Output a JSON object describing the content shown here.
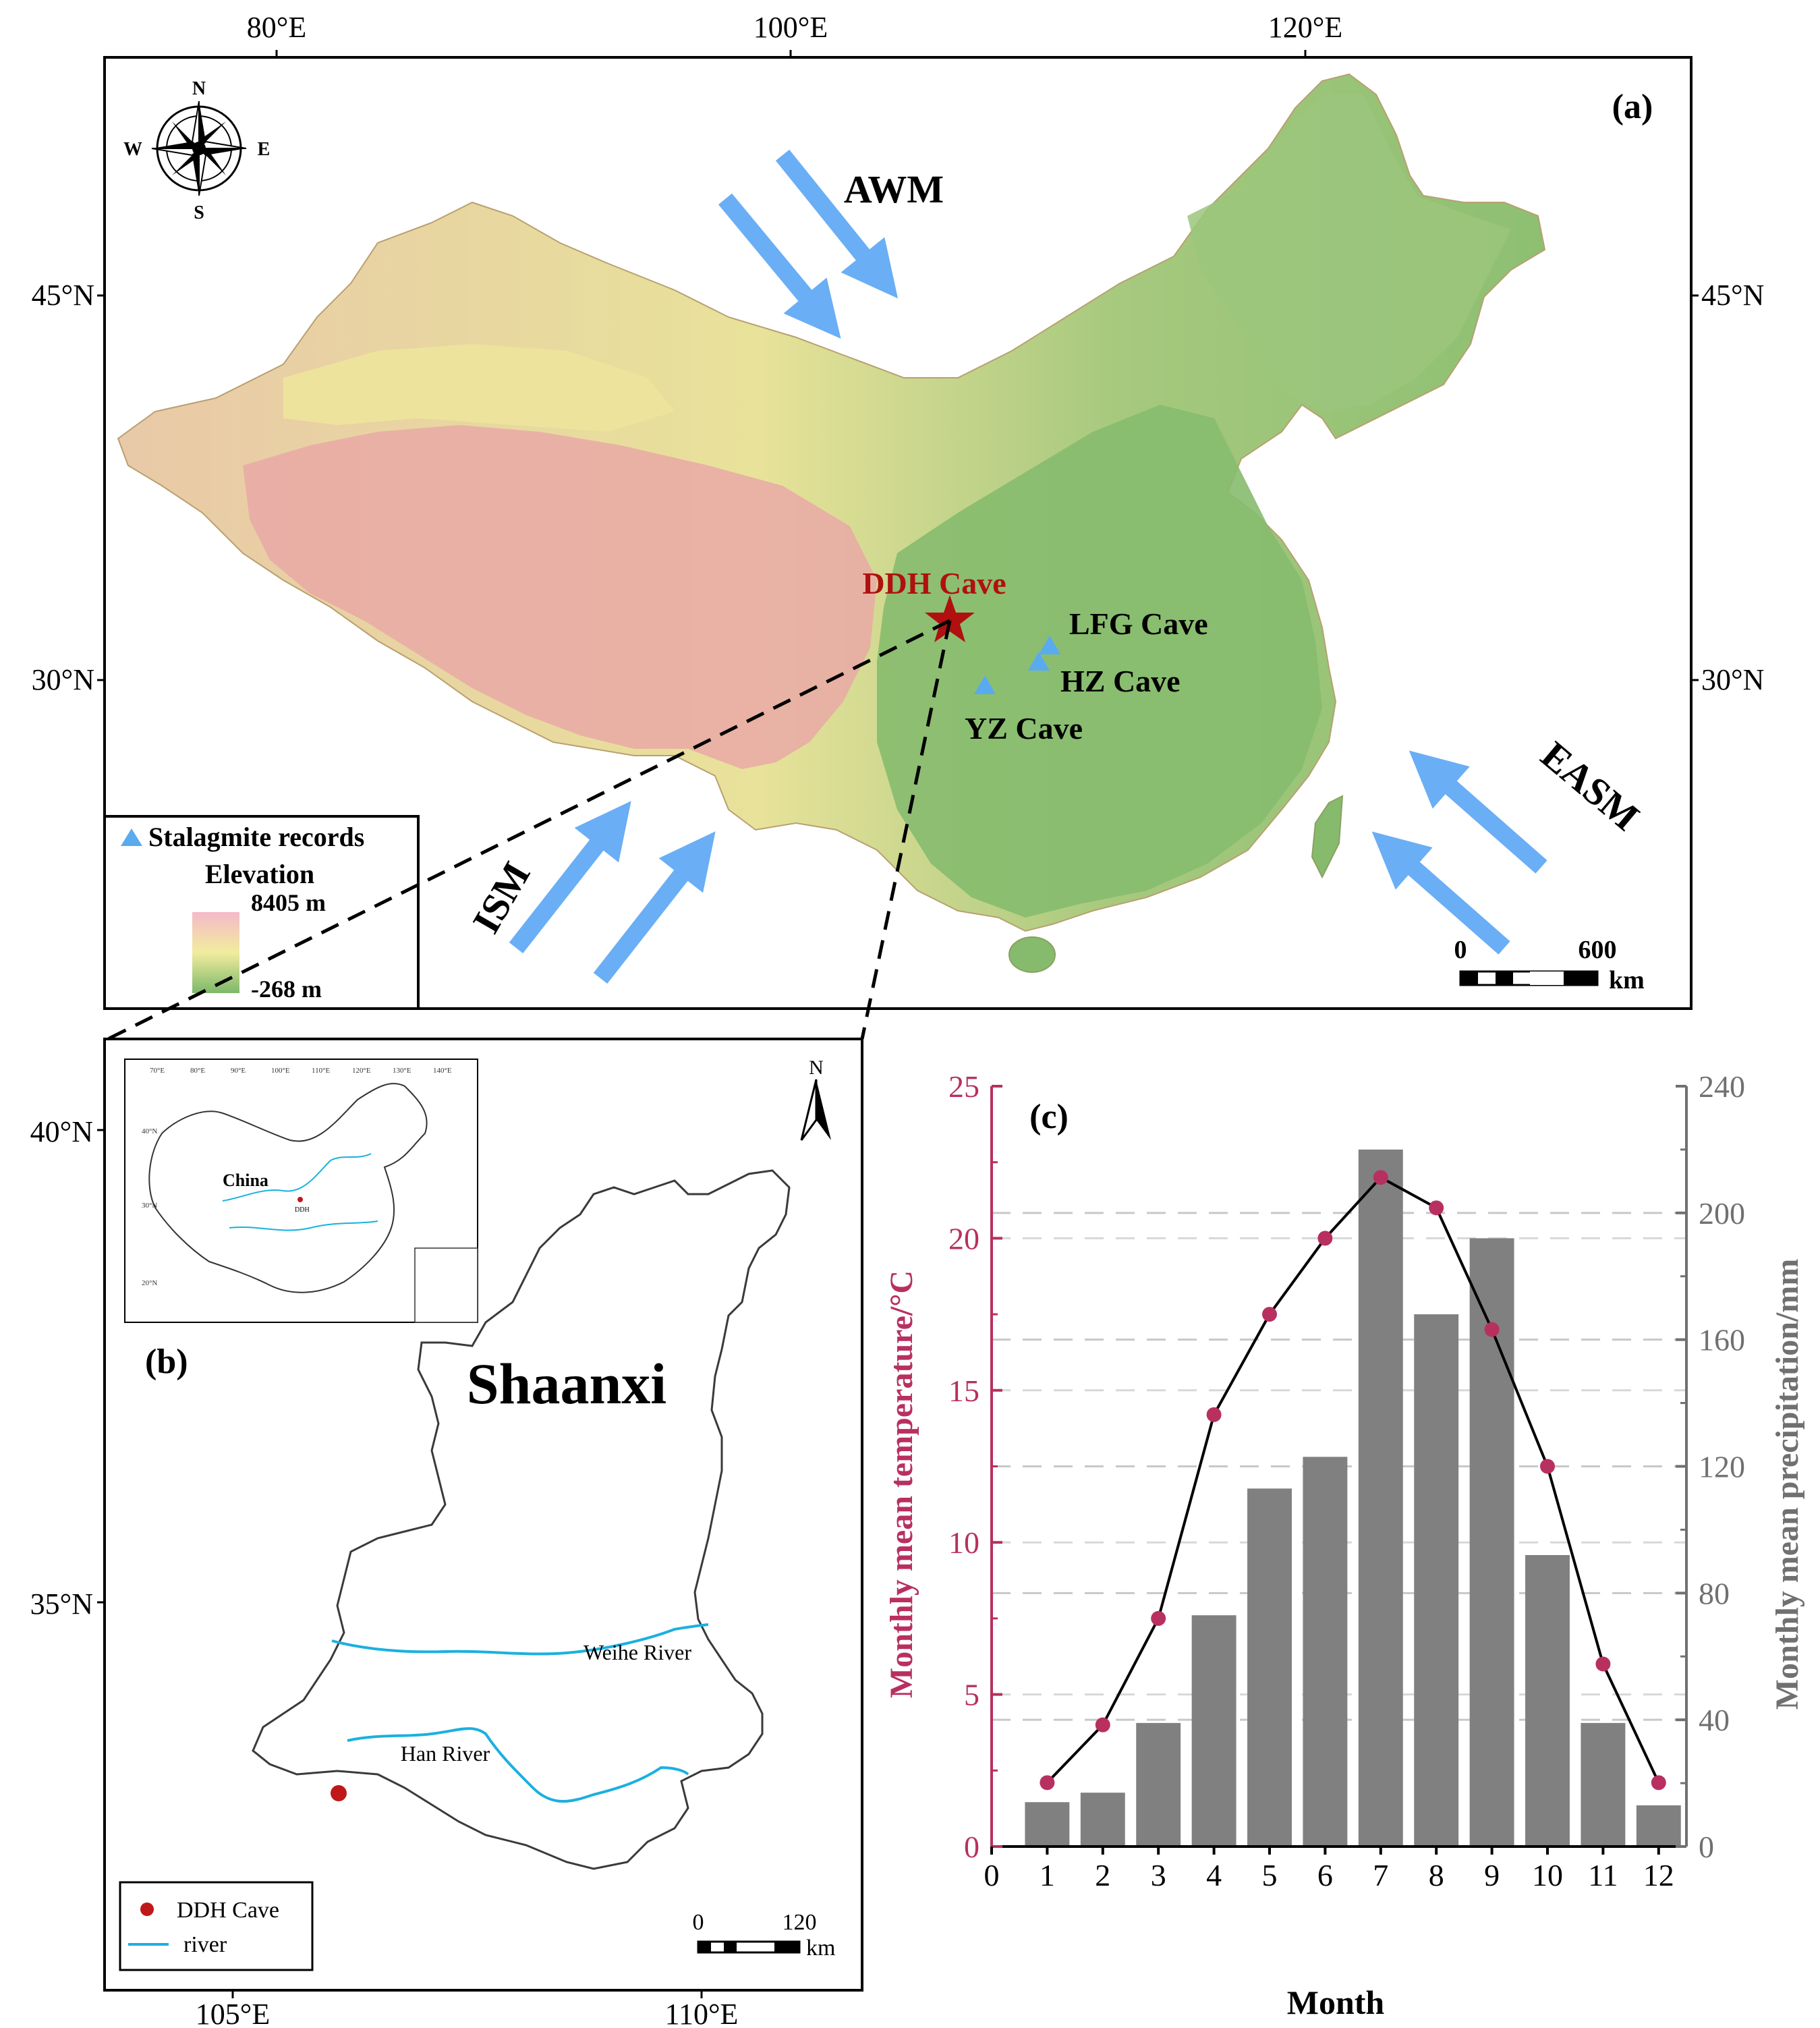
{
  "panel_a": {
    "label": "(a)",
    "lon_ticks": [
      "80°E",
      "100°E",
      "120°E"
    ],
    "lat_ticks": [
      "45°N",
      "30°N"
    ],
    "compass": {
      "n": "N",
      "s": "S",
      "e": "E",
      "w": "W"
    },
    "monsoons": {
      "awm": "AWM",
      "ism": "ISM",
      "easm": "EASM"
    },
    "sites": {
      "ddh": "DDH Cave",
      "lfg": "LFG Cave",
      "hz": "HZ Cave",
      "yz": "YZ Cave"
    },
    "legend": {
      "stalagmite": "Stalagmite records",
      "elevation": "Elevation",
      "max": "8405 m",
      "min": "-268 m"
    },
    "scale": {
      "zero": "0",
      "max": "600",
      "unit": "km"
    },
    "colors": {
      "high": "#f2b8c6",
      "mid": "#f0e8a0",
      "low": "#7fb86a",
      "arrow": "#6aaef5",
      "site": "#5aaaf0",
      "ddh": "#b01010"
    }
  },
  "panel_b": {
    "label": "(b)",
    "lon_ticks": [
      "105°E",
      "110°E"
    ],
    "lat_ticks": [
      "40°N",
      "35°N"
    ],
    "north": "N",
    "province": "Shaanxi",
    "inset": {
      "country": "China",
      "site": "DDH",
      "lon_ticks": [
        "70°E",
        "80°E",
        "90°E",
        "100°E",
        "110°E",
        "120°E",
        "130°E",
        "140°E"
      ],
      "lat_ticks": [
        "40°N",
        "30°N",
        "20°N"
      ]
    },
    "rivers": {
      "weihe": "Weihe River",
      "han": "Han River"
    },
    "legend": {
      "cave": "DDH Cave",
      "river": "river"
    },
    "scale": {
      "zero": "0",
      "max": "120",
      "unit": "km"
    },
    "colors": {
      "river": "#1ab0e0",
      "cave": "#c01818"
    }
  },
  "panel_c": {
    "label": "(c)",
    "chart_data": {
      "type": "bar",
      "xlabel": "Month",
      "ylabel_left": "Monthly mean temperature/°C",
      "ylabel_right": "Monthly mean precipitation/mm",
      "x_ticks": [
        "0",
        "1",
        "2",
        "3",
        "4",
        "5",
        "6",
        "7",
        "8",
        "9",
        "10",
        "11",
        "12"
      ],
      "categories": [
        1,
        2,
        3,
        4,
        5,
        6,
        7,
        8,
        9,
        10,
        11,
        12
      ],
      "xlim": [
        0,
        12.5
      ],
      "ylim_left": [
        0,
        25
      ],
      "ylim_right": [
        0,
        240
      ],
      "left_ticks": [
        "0",
        "5",
        "10",
        "15",
        "20",
        "25"
      ],
      "right_ticks": [
        "0",
        "40",
        "80",
        "120",
        "160",
        "200",
        "240"
      ],
      "precipitation": [
        14,
        17,
        39,
        73,
        113,
        123,
        220,
        168,
        192,
        92,
        39,
        13
      ],
      "temperature": [
        2.1,
        4.0,
        7.5,
        14.2,
        17.5,
        20.0,
        22.0,
        21.0,
        17.0,
        12.5,
        6.0,
        2.1
      ],
      "grid": "dashed horizontal",
      "colors": {
        "bar": "#808080",
        "temp_line": "#000000",
        "temp_marker": "#b83060",
        "left_axis": "#b83060",
        "right_axis": "#707070"
      }
    }
  }
}
